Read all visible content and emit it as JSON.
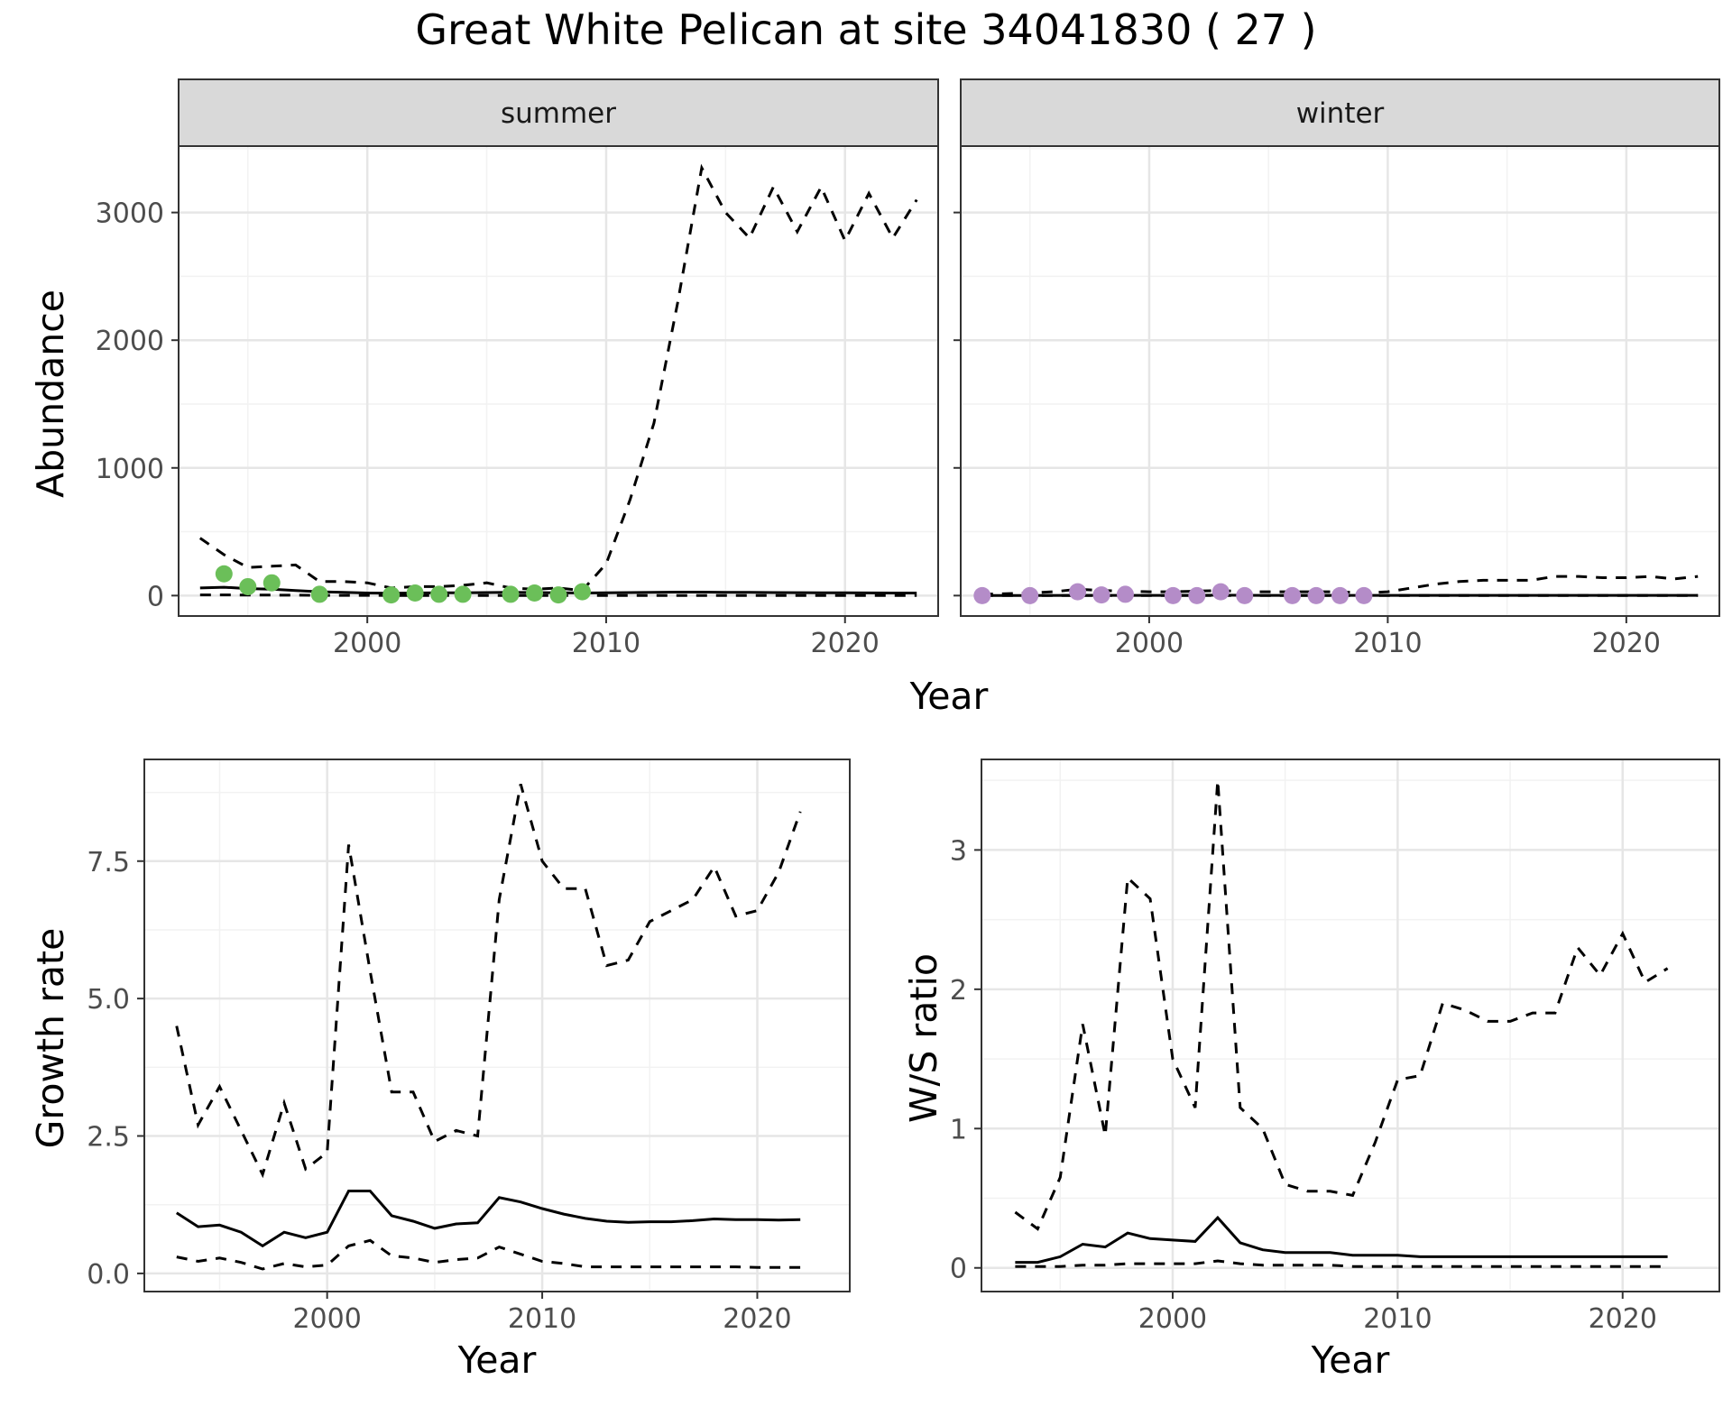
{
  "title": "Great White Pelican at site 34041830 ( 27 )",
  "colors": {
    "summer_points": "#6BBF59",
    "winter_points": "#B48CC8",
    "line": "#000000",
    "strip_bg": "#D9D9D9",
    "grid_major": "#E6E6E6",
    "grid_minor": "#F2F2F2",
    "axis_text": "#4D4D4D"
  },
  "chart_data": [
    {
      "type": "line",
      "panel": "summer",
      "strip_label": "summer",
      "xlabel": "",
      "ylabel": "Abundance",
      "xlim": [
        1992.1,
        2023.9
      ],
      "ylim": [
        -160,
        3520
      ],
      "xticks": [
        2000,
        2010,
        2020
      ],
      "xtick_labels": [
        "2000",
        "2010",
        "2020"
      ],
      "yticks": [
        0,
        1000,
        2000,
        3000
      ],
      "ytick_labels": [
        "0",
        "1000",
        "2000",
        "3000"
      ],
      "lines": {
        "estimate": {
          "x": [
            1993,
            1994,
            1995,
            1996,
            1997,
            1998,
            1999,
            2000,
            2001,
            2002,
            2003,
            2004,
            2005,
            2006,
            2007,
            2008,
            2009,
            2010,
            2011,
            2012,
            2013,
            2014,
            2015,
            2016,
            2017,
            2018,
            2019,
            2020,
            2021,
            2022,
            2023
          ],
          "y": [
            60,
            65,
            55,
            50,
            40,
            30,
            25,
            20,
            18,
            20,
            22,
            22,
            24,
            25,
            24,
            22,
            20,
            22,
            24,
            26,
            27,
            27,
            26,
            25,
            24,
            23,
            22,
            22,
            21,
            20,
            20
          ]
        },
        "upper": {
          "x": [
            1993,
            1994,
            1995,
            1996,
            1997,
            1998,
            1999,
            2000,
            2001,
            2002,
            2003,
            2004,
            2005,
            2006,
            2007,
            2008,
            2009,
            2010,
            2011,
            2012,
            2013,
            2014,
            2015,
            2016,
            2017,
            2018,
            2019,
            2020,
            2021,
            2022,
            2023
          ],
          "y": [
            450,
            320,
            220,
            230,
            240,
            110,
            110,
            100,
            60,
            70,
            70,
            80,
            100,
            60,
            50,
            60,
            40,
            250,
            750,
            1350,
            2300,
            3350,
            3000,
            2800,
            3200,
            2850,
            3200,
            2780,
            3150,
            2800,
            3100
          ]
        },
        "lower": {
          "x": [
            1993,
            1994,
            1995,
            1996,
            1997,
            1998,
            1999,
            2000,
            2001,
            2002,
            2003,
            2004,
            2005,
            2006,
            2007,
            2008,
            2009,
            2010,
            2011,
            2012,
            2013,
            2014,
            2015,
            2016,
            2017,
            2018,
            2019,
            2020,
            2021,
            2022,
            2023
          ],
          "y": [
            5,
            5,
            4,
            4,
            3,
            2,
            2,
            2,
            1,
            1,
            1,
            1,
            1,
            1,
            1,
            1,
            1,
            1,
            1,
            1,
            1,
            1,
            1,
            1,
            1,
            1,
            1,
            1,
            1,
            1,
            1
          ]
        }
      },
      "points": {
        "x": [
          1994,
          1995,
          1996,
          1998,
          2001,
          2002,
          2003,
          2004,
          2006,
          2007,
          2008,
          2009
        ],
        "y": [
          170,
          70,
          100,
          10,
          5,
          20,
          10,
          10,
          10,
          20,
          5,
          30
        ]
      }
    },
    {
      "type": "line",
      "panel": "winter",
      "strip_label": "winter",
      "xlabel": "",
      "ylabel": "",
      "xlim": [
        1992.1,
        2023.9
      ],
      "ylim": [
        -160,
        3520
      ],
      "xticks": [
        2000,
        2010,
        2020
      ],
      "xtick_labels": [
        "2000",
        "2010",
        "2020"
      ],
      "yticks": [
        0,
        1000,
        2000,
        3000
      ],
      "ytick_labels": [],
      "lines": {
        "estimate": {
          "x": [
            1993,
            1995,
            1997,
            1999,
            2001,
            2003,
            2005,
            2007,
            2009,
            2011,
            2013,
            2015,
            2017,
            2019,
            2021,
            2023
          ],
          "y": [
            0,
            1,
            2,
            2,
            2,
            3,
            2,
            2,
            2,
            2,
            2,
            2,
            2,
            2,
            2,
            2
          ]
        },
        "upper": {
          "x": [
            1993,
            1994,
            1995,
            1996,
            1997,
            1998,
            1999,
            2000,
            2001,
            2002,
            2003,
            2004,
            2005,
            2006,
            2007,
            2008,
            2009,
            2010,
            2011,
            2012,
            2013,
            2014,
            2015,
            2016,
            2017,
            2018,
            2019,
            2020,
            2021,
            2022,
            2023
          ],
          "y": [
            10,
            15,
            20,
            30,
            50,
            40,
            35,
            30,
            30,
            35,
            40,
            30,
            30,
            30,
            30,
            30,
            20,
            30,
            60,
            90,
            110,
            120,
            120,
            120,
            150,
            150,
            140,
            140,
            150,
            130,
            150
          ]
        },
        "lower": {
          "x": [
            1993,
            2023
          ],
          "y": [
            0,
            0
          ]
        }
      },
      "points": {
        "x": [
          1993,
          1995,
          1997,
          1998,
          1999,
          2001,
          2002,
          2003,
          2004,
          2006,
          2007,
          2008,
          2009
        ],
        "y": [
          0,
          0,
          30,
          5,
          10,
          0,
          0,
          30,
          0,
          0,
          0,
          0,
          0
        ]
      }
    },
    {
      "type": "line",
      "panel": "growth",
      "xlabel": "Year",
      "ylabel": "Growth rate",
      "xlim": [
        1991.5,
        2024.3
      ],
      "ylim": [
        -0.33,
        9.35
      ],
      "xticks": [
        2000,
        2010,
        2020
      ],
      "xtick_labels": [
        "2000",
        "2010",
        "2020"
      ],
      "yticks": [
        0,
        2.5,
        5,
        7.5
      ],
      "ytick_labels": [
        "0.0",
        "2.5",
        "5.0",
        "7.5"
      ],
      "lines": {
        "estimate": {
          "x": [
            1993,
            1994,
            1995,
            1996,
            1997,
            1998,
            1999,
            2000,
            2001,
            2002,
            2003,
            2004,
            2005,
            2006,
            2007,
            2008,
            2009,
            2010,
            2011,
            2012,
            2013,
            2014,
            2015,
            2016,
            2017,
            2018,
            2019,
            2020,
            2021,
            2022
          ],
          "y": [
            1.1,
            0.85,
            0.88,
            0.75,
            0.5,
            0.75,
            0.65,
            0.75,
            1.5,
            1.5,
            1.05,
            0.95,
            0.82,
            0.9,
            0.92,
            1.38,
            1.3,
            1.18,
            1.08,
            1.0,
            0.95,
            0.93,
            0.94,
            0.94,
            0.96,
            0.99,
            0.98,
            0.98,
            0.97,
            0.98
          ]
        },
        "upper": {
          "x": [
            1993,
            1994,
            1995,
            1996,
            1997,
            1998,
            1999,
            2000,
            2001,
            2002,
            2003,
            2004,
            2005,
            2006,
            2007,
            2008,
            2009,
            2010,
            2011,
            2012,
            2013,
            2014,
            2015,
            2016,
            2017,
            2018,
            2019,
            2020,
            2021,
            2022
          ],
          "y": [
            4.5,
            2.7,
            3.4,
            2.6,
            1.8,
            3.1,
            1.9,
            2.2,
            7.8,
            5.5,
            3.3,
            3.3,
            2.4,
            2.6,
            2.5,
            6.8,
            8.9,
            7.5,
            7.0,
            7.0,
            5.6,
            5.7,
            6.4,
            6.6,
            6.8,
            7.4,
            6.5,
            6.6,
            7.3,
            8.4
          ]
        },
        "lower": {
          "x": [
            1993,
            1994,
            1995,
            1996,
            1997,
            1998,
            1999,
            2000,
            2001,
            2002,
            2003,
            2004,
            2005,
            2006,
            2007,
            2008,
            2009,
            2010,
            2011,
            2012,
            2013,
            2014,
            2015,
            2016,
            2017,
            2018,
            2019,
            2020,
            2021,
            2022
          ],
          "y": [
            0.3,
            0.22,
            0.28,
            0.2,
            0.08,
            0.18,
            0.12,
            0.15,
            0.5,
            0.6,
            0.32,
            0.28,
            0.2,
            0.25,
            0.28,
            0.48,
            0.35,
            0.22,
            0.18,
            0.12,
            0.12,
            0.12,
            0.12,
            0.12,
            0.12,
            0.12,
            0.12,
            0.11,
            0.11,
            0.11
          ]
        }
      }
    },
    {
      "type": "line",
      "panel": "ratio",
      "xlabel": "Year",
      "ylabel": "W/S ratio",
      "xlim": [
        1991.5,
        2024.3
      ],
      "ylim": [
        -0.17,
        3.65
      ],
      "xticks": [
        2000,
        2010,
        2020
      ],
      "xtick_labels": [
        "2000",
        "2010",
        "2020"
      ],
      "yticks": [
        0,
        1,
        2,
        3
      ],
      "ytick_labels": [
        "0",
        "1",
        "2",
        "3"
      ],
      "lines": {
        "estimate": {
          "x": [
            1993,
            1994,
            1995,
            1996,
            1997,
            1998,
            1999,
            2000,
            2001,
            2002,
            2003,
            2004,
            2005,
            2006,
            2007,
            2008,
            2009,
            2010,
            2011,
            2012,
            2013,
            2014,
            2015,
            2016,
            2017,
            2018,
            2019,
            2020,
            2021,
            2022
          ],
          "y": [
            0.04,
            0.04,
            0.08,
            0.17,
            0.15,
            0.25,
            0.21,
            0.2,
            0.19,
            0.36,
            0.18,
            0.13,
            0.11,
            0.11,
            0.11,
            0.09,
            0.09,
            0.09,
            0.08,
            0.08,
            0.08,
            0.08,
            0.08,
            0.08,
            0.08,
            0.08,
            0.08,
            0.08,
            0.08,
            0.08
          ]
        },
        "upper": {
          "x": [
            1993,
            1994,
            1995,
            1996,
            1997,
            1998,
            1999,
            2000,
            2001,
            2002,
            2003,
            2004,
            2005,
            2006,
            2007,
            2008,
            2009,
            2010,
            2011,
            2012,
            2013,
            2014,
            2015,
            2016,
            2017,
            2018,
            2019,
            2020,
            2021,
            2022
          ],
          "y": [
            0.4,
            0.28,
            0.65,
            1.75,
            0.95,
            2.8,
            2.65,
            1.5,
            1.15,
            3.5,
            1.15,
            1.0,
            0.6,
            0.55,
            0.55,
            0.52,
            0.9,
            1.35,
            1.38,
            1.9,
            1.85,
            1.77,
            1.77,
            1.83,
            1.83,
            2.3,
            2.1,
            2.4,
            2.05,
            2.15
          ]
        },
        "lower": {
          "x": [
            1993,
            1994,
            1995,
            1996,
            1997,
            1998,
            1999,
            2000,
            2001,
            2002,
            2003,
            2004,
            2005,
            2006,
            2007,
            2008,
            2009,
            2010,
            2011,
            2012,
            2013,
            2014,
            2015,
            2016,
            2017,
            2018,
            2019,
            2020,
            2021,
            2022
          ],
          "y": [
            0.01,
            0.01,
            0.01,
            0.02,
            0.02,
            0.03,
            0.03,
            0.03,
            0.03,
            0.05,
            0.03,
            0.02,
            0.02,
            0.02,
            0.02,
            0.01,
            0.01,
            0.01,
            0.01,
            0.01,
            0.01,
            0.01,
            0.01,
            0.01,
            0.01,
            0.01,
            0.01,
            0.01,
            0.01,
            0.01
          ]
        }
      }
    }
  ]
}
